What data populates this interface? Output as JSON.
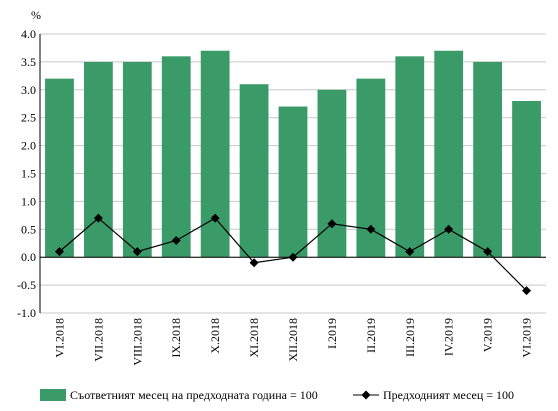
{
  "chart_data": {
    "type": "bar",
    "ylabel": "%",
    "ylim": [
      -1.0,
      4.0
    ],
    "ytick_step": 0.5,
    "categories": [
      "VI.2018",
      "VII.2018",
      "VIII.2018",
      "IX.2018",
      "X.2018",
      "XI.2018",
      "XII.2018",
      "I.2019",
      "II.2019",
      "III.2019",
      "IV.2019",
      "V.2019",
      "VI.2019"
    ],
    "series": [
      {
        "name": "Съответният месец на предходната година = 100",
        "kind": "bar",
        "color": "#3a9a68",
        "values": [
          3.2,
          3.5,
          3.5,
          3.6,
          3.7,
          3.1,
          2.7,
          3.0,
          3.2,
          3.6,
          3.7,
          3.5,
          2.8
        ]
      },
      {
        "name": "Предходният месец = 100",
        "kind": "line",
        "color": "#000000",
        "marker": "diamond",
        "values": [
          0.1,
          0.7,
          0.1,
          0.3,
          0.7,
          -0.1,
          0.0,
          0.6,
          0.5,
          0.1,
          0.5,
          0.1,
          -0.6
        ]
      }
    ],
    "grid": true,
    "legend": "bottom"
  }
}
